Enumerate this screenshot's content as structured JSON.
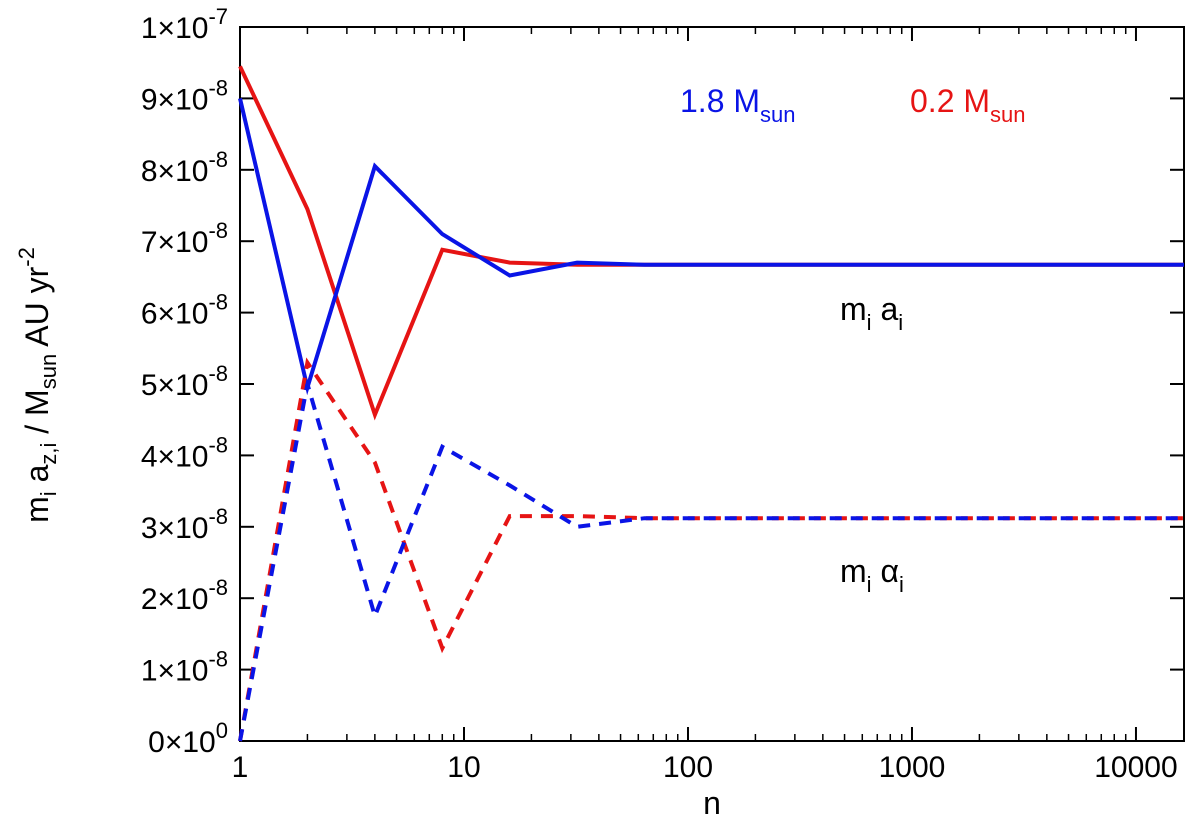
{
  "chart_data": {
    "type": "line",
    "xscale": "log",
    "xlim": [
      1,
      16384
    ],
    "ylim": [
      0,
      1e-07
    ],
    "xlabel": "n",
    "ylabel": {
      "base": "m",
      "sub_i": "i",
      "a": " a",
      "sub_zi": "z,i",
      "slash": " / M",
      "sub_sun": "sun",
      "unit": " AU yr",
      "sup": "-2"
    },
    "x_ticks": [
      {
        "value": 1,
        "label": "1"
      },
      {
        "value": 10,
        "label": "10"
      },
      {
        "value": 100,
        "label": "100"
      },
      {
        "value": 1000,
        "label": "1000"
      },
      {
        "value": 10000,
        "label": "10000"
      }
    ],
    "y_ticks": [
      {
        "value": 0,
        "mant": "0×10",
        "exp": "0"
      },
      {
        "value": 1e-08,
        "mant": "1×10",
        "exp": "-8"
      },
      {
        "value": 2e-08,
        "mant": "2×10",
        "exp": "-8"
      },
      {
        "value": 3e-08,
        "mant": "3×10",
        "exp": "-8"
      },
      {
        "value": 4e-08,
        "mant": "4×10",
        "exp": "-8"
      },
      {
        "value": 5e-08,
        "mant": "5×10",
        "exp": "-8"
      },
      {
        "value": 6e-08,
        "mant": "6×10",
        "exp": "-8"
      },
      {
        "value": 7e-08,
        "mant": "7×10",
        "exp": "-8"
      },
      {
        "value": 8e-08,
        "mant": "8×10",
        "exp": "-8"
      },
      {
        "value": 9e-08,
        "mant": "9×10",
        "exp": "-8"
      },
      {
        "value": 1e-07,
        "mant": "1×10",
        "exp": "-7"
      }
    ],
    "legend": [
      {
        "name": "1.8 M",
        "sub": "sun",
        "color": "#0a14e6"
      },
      {
        "name": "0.2 M",
        "sub": "sun",
        "color": "#e61414"
      }
    ],
    "annotations": [
      {
        "base": "m",
        "sub1": "i",
        "mid": " a",
        "sub2": "i"
      },
      {
        "base": "m",
        "sub1": "i",
        "mid": " α",
        "sub2": "i"
      }
    ],
    "series": [
      {
        "name": "0.2 Msun m_i a_i",
        "color": "#e61414",
        "style": "solid",
        "x": [
          1,
          2,
          4,
          8,
          16,
          32,
          64,
          128,
          16384
        ],
        "y": [
          9.45e-08,
          7.45e-08,
          4.57e-08,
          6.88e-08,
          6.7e-08,
          6.67e-08,
          6.67e-08,
          6.67e-08,
          6.67e-08
        ]
      },
      {
        "name": "1.8 Msun m_i a_i",
        "color": "#0a14e6",
        "style": "solid",
        "x": [
          1,
          2,
          4,
          8,
          16,
          32,
          64,
          128,
          16384
        ],
        "y": [
          9e-08,
          4.95e-08,
          8.05e-08,
          7.1e-08,
          6.52e-08,
          6.7e-08,
          6.67e-08,
          6.67e-08,
          6.67e-08
        ]
      },
      {
        "name": "0.2 Msun m_i alpha_i",
        "color": "#e61414",
        "style": "dashed",
        "x": [
          1,
          2,
          4,
          8,
          16,
          32,
          64,
          128,
          16384
        ],
        "y": [
          0,
          5.3e-08,
          3.9e-08,
          1.3e-08,
          3.15e-08,
          3.15e-08,
          3.12e-08,
          3.12e-08,
          3.12e-08
        ]
      },
      {
        "name": "1.8 Msun m_i alpha_i",
        "color": "#0a14e6",
        "style": "dashed",
        "x": [
          1,
          2,
          4,
          8,
          16,
          32,
          64,
          128,
          16384
        ],
        "y": [
          0,
          5e-08,
          1.75e-08,
          4.12e-08,
          3.58e-08,
          3e-08,
          3.12e-08,
          3.12e-08,
          3.12e-08
        ]
      }
    ]
  }
}
